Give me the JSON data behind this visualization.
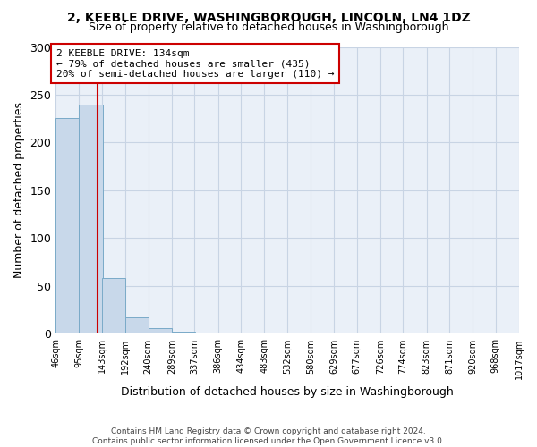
{
  "title": "2, KEEBLE DRIVE, WASHINGBOROUGH, LINCOLN, LN4 1DZ",
  "subtitle": "Size of property relative to detached houses in Washingborough",
  "xlabel": "Distribution of detached houses by size in Washingborough",
  "ylabel": "Number of detached properties",
  "bar_left_edges": [
    46,
    95,
    143,
    192,
    240,
    289,
    337,
    386,
    434,
    483,
    532,
    580,
    629,
    677,
    726,
    774,
    823,
    871,
    920,
    968
  ],
  "bar_heights": [
    226,
    240,
    58,
    17,
    6,
    2,
    1,
    0,
    0,
    0,
    0,
    0,
    0,
    0,
    0,
    0,
    0,
    0,
    0,
    1
  ],
  "bin_width": 49,
  "bar_color": "#c8d8ea",
  "bar_edge_color": "#7aaac8",
  "x_tick_labels": [
    "46sqm",
    "95sqm",
    "143sqm",
    "192sqm",
    "240sqm",
    "289sqm",
    "337sqm",
    "386sqm",
    "434sqm",
    "483sqm",
    "532sqm",
    "580sqm",
    "629sqm",
    "677sqm",
    "726sqm",
    "774sqm",
    "823sqm",
    "871sqm",
    "920sqm",
    "968sqm",
    "1017sqm"
  ],
  "ylim": [
    0,
    300
  ],
  "yticks": [
    0,
    50,
    100,
    150,
    200,
    250,
    300
  ],
  "property_line_x": 134,
  "property_line_color": "#cc0000",
  "annotation_title": "2 KEEBLE DRIVE: 134sqm",
  "annotation_line1": "← 79% of detached houses are smaller (435)",
  "annotation_line2": "20% of semi-detached houses are larger (110) →",
  "annotation_box_facecolor": "#ffffff",
  "annotation_box_edgecolor": "#cc0000",
  "grid_color": "#c8d4e4",
  "background_color": "#ffffff",
  "axes_bg_color": "#eaf0f8",
  "footer_line1": "Contains HM Land Registry data © Crown copyright and database right 2024.",
  "footer_line2": "Contains public sector information licensed under the Open Government Licence v3.0."
}
